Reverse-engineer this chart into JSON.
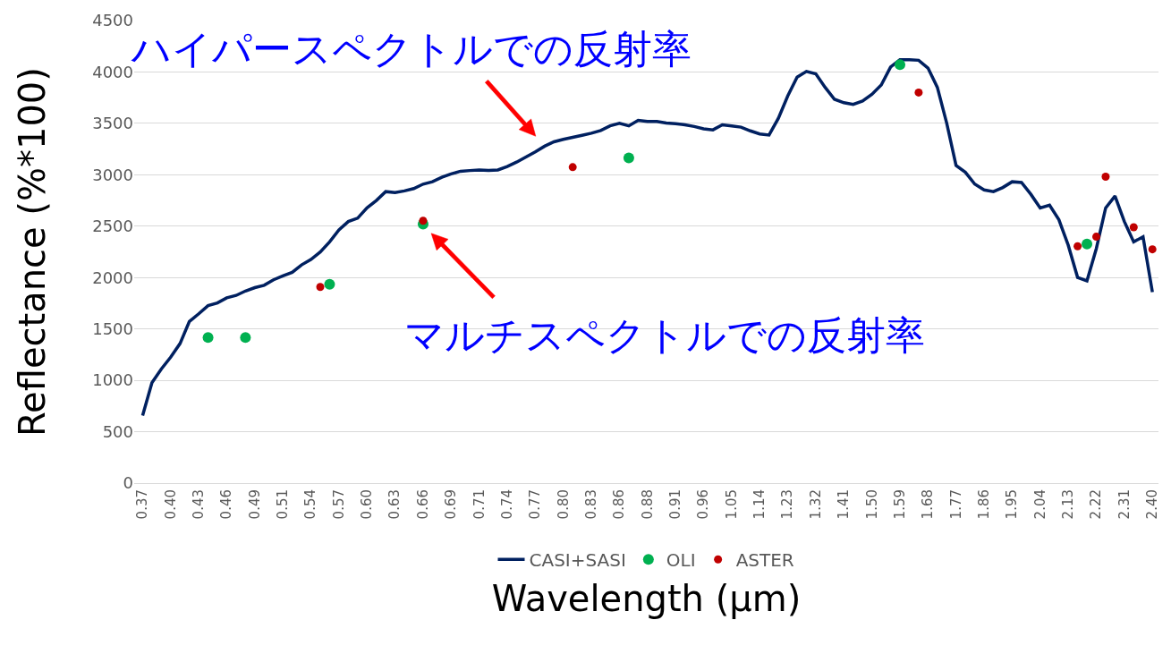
{
  "chart_data": {
    "type": "line",
    "xlabel": "Wavelength (µm)",
    "ylabel": "Reflectance (%*100)",
    "annotations": [
      "ハイパースペクトルでの反射率",
      "マルチスペクトルでの反射率"
    ],
    "categories": [
      "0.37",
      null,
      null,
      "0.40",
      null,
      null,
      "0.43",
      null,
      null,
      "0.46",
      null,
      null,
      "0.49",
      null,
      null,
      "0.51",
      null,
      null,
      "0.54",
      null,
      null,
      "0.57",
      null,
      null,
      "0.60",
      null,
      null,
      "0.63",
      null,
      null,
      "0.66",
      null,
      null,
      "0.69",
      null,
      null,
      "0.71",
      null,
      null,
      "0.74",
      null,
      null,
      "0.77",
      null,
      null,
      "0.80",
      null,
      null,
      "0.83",
      null,
      null,
      "0.86",
      null,
      null,
      "0.88",
      null,
      null,
      "0.91",
      null,
      null,
      "0.96",
      null,
      null,
      "1.05",
      null,
      null,
      "1.14",
      null,
      null,
      "1.23",
      null,
      null,
      "1.32",
      null,
      null,
      "1.41",
      null,
      null,
      "1.50",
      null,
      null,
      "1.59",
      null,
      null,
      "1.68",
      null,
      null,
      "1.77",
      null,
      null,
      "1.86",
      null,
      null,
      "1.95",
      null,
      null,
      "2.04",
      null,
      null,
      "2.13",
      null,
      null,
      "2.22",
      null,
      null,
      "2.31",
      null,
      null,
      "2.40"
    ],
    "series": [
      {
        "name": "CASI+SASI",
        "color": "#002060",
        "type": "line",
        "marker": "none",
        "values": [
          657,
          977,
          1110,
          1225,
          1357,
          1572,
          1647,
          1727,
          1753,
          1803,
          1826,
          1869,
          1902,
          1925,
          1978,
          2017,
          2050,
          2123,
          2176,
          2248,
          2347,
          2463,
          2545,
          2578,
          2678,
          2750,
          2836,
          2826,
          2843,
          2866,
          2909,
          2932,
          2975,
          3008,
          3034,
          3041,
          3047,
          3041,
          3047,
          3080,
          3123,
          3173,
          3222,
          3278,
          3321,
          3344,
          3364,
          3384,
          3404,
          3430,
          3476,
          3500,
          3476,
          3529,
          3519,
          3519,
          3503,
          3496,
          3486,
          3470,
          3447,
          3437,
          3486,
          3476,
          3463,
          3427,
          3397,
          3387,
          3550,
          3767,
          3949,
          4005,
          3982,
          3850,
          3734,
          3701,
          3684,
          3717,
          3783,
          3873,
          4048,
          4120,
          4120,
          4114,
          4038,
          3850,
          3503,
          3090,
          3024,
          2909,
          2852,
          2836,
          2876,
          2932,
          2925,
          2810,
          2677,
          2704,
          2562,
          2314,
          2001,
          1968,
          2281,
          2677,
          2793,
          2545,
          2347,
          2397,
          1859
        ]
      },
      {
        "name": "OLI",
        "color": "#00b050",
        "type": "scatter",
        "marker": "circle",
        "values": [
          null,
          null,
          null,
          null,
          null,
          null,
          null,
          1416,
          null,
          null,
          null,
          1416,
          null,
          null,
          null,
          null,
          null,
          null,
          null,
          null,
          1935,
          null,
          null,
          null,
          null,
          null,
          null,
          null,
          null,
          null,
          2519,
          null,
          null,
          null,
          null,
          null,
          null,
          null,
          null,
          null,
          null,
          null,
          null,
          null,
          null,
          null,
          null,
          null,
          null,
          null,
          null,
          null,
          3163,
          null,
          null,
          null,
          null,
          null,
          null,
          null,
          null,
          null,
          null,
          null,
          null,
          null,
          null,
          null,
          null,
          null,
          null,
          null,
          null,
          null,
          null,
          null,
          null,
          null,
          null,
          null,
          null,
          4071,
          null,
          null,
          null,
          null,
          null,
          null,
          null,
          null,
          null,
          null,
          null,
          null,
          null,
          null,
          null,
          null,
          null,
          null,
          null,
          2327,
          null,
          null,
          null,
          null,
          null,
          null,
          null
        ]
      },
      {
        "name": "ASTER",
        "color": "#c00000",
        "type": "scatter",
        "marker": "circle",
        "values": [
          null,
          null,
          null,
          null,
          null,
          null,
          null,
          null,
          null,
          null,
          null,
          null,
          null,
          null,
          null,
          null,
          null,
          null,
          null,
          1908,
          null,
          null,
          null,
          null,
          null,
          null,
          null,
          null,
          null,
          null,
          2552,
          null,
          null,
          null,
          null,
          null,
          null,
          null,
          null,
          null,
          null,
          null,
          null,
          null,
          null,
          null,
          3074,
          null,
          null,
          null,
          null,
          null,
          null,
          null,
          null,
          null,
          null,
          null,
          null,
          null,
          null,
          null,
          null,
          null,
          null,
          null,
          null,
          null,
          null,
          null,
          null,
          null,
          null,
          null,
          null,
          null,
          null,
          null,
          null,
          null,
          null,
          null,
          null,
          3800,
          null,
          null,
          null,
          null,
          null,
          null,
          null,
          null,
          null,
          null,
          null,
          null,
          null,
          null,
          null,
          null,
          2304,
          null,
          2397,
          2981,
          null,
          null,
          2489,
          null,
          2275
        ]
      }
    ],
    "ylim": [
      0,
      4500
    ],
    "yticks": [
      0,
      500,
      1000,
      1500,
      2000,
      2500,
      3000,
      3500,
      4000,
      4500
    ],
    "grid": "y",
    "legend": "bottom"
  }
}
